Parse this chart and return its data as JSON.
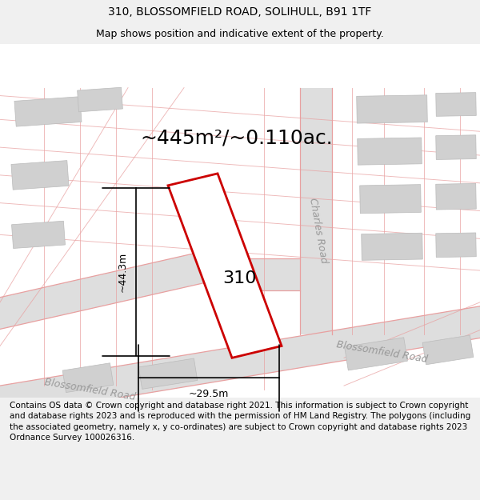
{
  "title_line1": "310, BLOSSOMFIELD ROAD, SOLIHULL, B91 1TF",
  "title_line2": "Map shows position and indicative extent of the property.",
  "area_text": "~445m²/~0.110ac.",
  "label_310": "310",
  "dim_width": "~29.5m",
  "dim_height": "~44.3m",
  "road_label_br1": "Blossomfield Road",
  "road_label_br2": "Blossomfield Road",
  "road_label_cr": "Charles Road",
  "footer_text": "Contains OS data © Crown copyright and database right 2021. This information is subject to Crown copyright and database rights 2023 and is reproduced with the permission of HM Land Registry. The polygons (including the associated geometry, namely x, y co-ordinates) are subject to Crown copyright and database rights 2023 Ordnance Survey 100026316.",
  "bg_color": "#f0f0f0",
  "map_bg": "#ffffff",
  "road_gray": "#dedede",
  "building_fill": "#d0d0d0",
  "building_edge": "#bbbbbb",
  "plot_edge": "#cc0000",
  "road_line_color": "#e8a0a0",
  "road_text_color": "#999999",
  "title_fontsize": 10,
  "subtitle_fontsize": 9,
  "area_fontsize": 18,
  "label_fontsize": 16,
  "road_fontsize": 9,
  "footer_fontsize": 7.5
}
